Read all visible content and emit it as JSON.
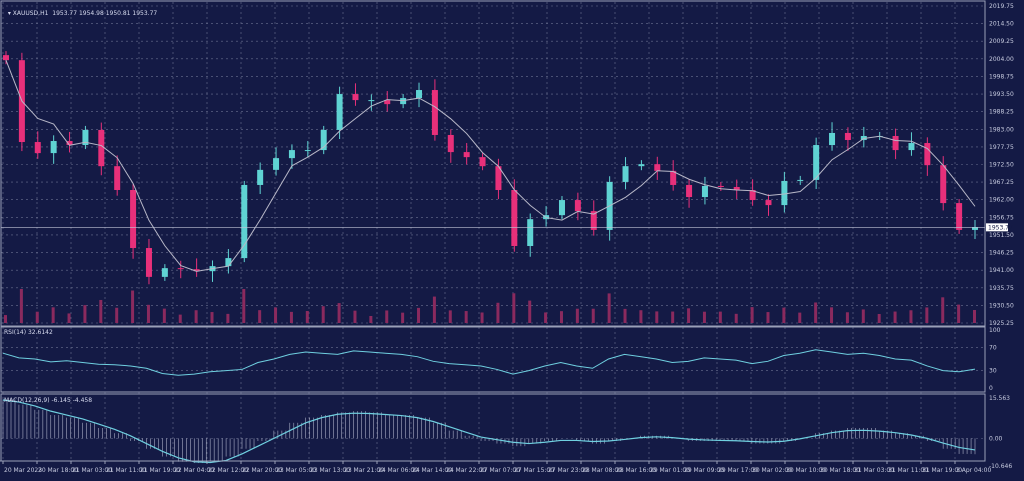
{
  "header": {
    "symbol": "XAUUSD,H1",
    "ohlc": "1953.77 1954.98 1950.81 1953.77"
  },
  "rsi_panel": {
    "label": "RSI(14) 32.6142",
    "levels": [
      "100",
      "70",
      "30",
      "0"
    ]
  },
  "macd_panel": {
    "label": "MACD(12,26,9) -6.145 -4.458",
    "levels": [
      "15.563",
      "0.00",
      "-10.646"
    ]
  },
  "colors": {
    "background": "#141a45",
    "bull": "#5fd3d3",
    "bear": "#e8307a",
    "moving_average": "#b8b8c8",
    "indicator_line": "#6fd0e0",
    "grid": "#6a7090"
  },
  "chart_data": [
    {
      "type": "candlestick",
      "title": "XAUUSD,H1",
      "current_price": "1953.77",
      "ylim": [
        1925.25,
        2019.75
      ],
      "y_ticks": [
        "2019.75",
        "2014.50",
        "2009.25",
        "2004.00",
        "1998.75",
        "1993.50",
        "1988.25",
        "1983.00",
        "1977.75",
        "1972.50",
        "1967.25",
        "1962.00",
        "1956.75",
        "1951.50",
        "1946.25",
        "1941.00",
        "1935.75",
        "1930.50",
        "1925.25"
      ],
      "x_ticks": [
        "20 Mar 2023",
        "20 Mar 18:00",
        "21 Mar 03:00",
        "21 Mar 11:00",
        "21 Mar 19:00",
        "22 Mar 04:00",
        "22 Mar 12:00",
        "22 Mar 20:00",
        "23 Mar 05:00",
        "23 Mar 13:00",
        "23 Mar 21:00",
        "24 Mar 06:00",
        "24 Mar 14:00",
        "24 Mar 22:00",
        "27 Mar 07:00",
        "27 Mar 15:00",
        "27 Mar 23:00",
        "28 Mar 08:00",
        "28 Mar 16:00",
        "29 Mar 01:00",
        "29 Mar 09:00",
        "29 Mar 17:00",
        "30 Mar 02:00",
        "30 Mar 10:00",
        "30 Mar 18:00",
        "31 Mar 03:00",
        "31 Mar 11:00",
        "31 Mar 19:00",
        "3 Apr 04:00"
      ],
      "grid": true,
      "closes_sampled": [
        2003.6,
        1979.2,
        1975.9,
        1979.5,
        1978.3,
        1982.8,
        1972.0,
        1964.9,
        1947.6,
        1939.0,
        1941.6,
        1941.3,
        1940.7,
        1942.2,
        1944.6,
        1966.4,
        1970.9,
        1974.4,
        1976.8,
        1976.8,
        1982.8,
        1993.5,
        1991.7,
        1991.7,
        1990.5,
        1992.3,
        1994.7,
        1981.3,
        1976.2,
        1974.7,
        1972.0,
        1964.9,
        1948.2,
        1956.2,
        1957.4,
        1961.9,
        1958.6,
        1953.0,
        1967.3,
        1972.0,
        1972.6,
        1970.6,
        1966.4,
        1962.8,
        1966.1,
        1965.8,
        1964.9,
        1961.9,
        1960.4,
        1967.6,
        1967.9,
        1978.3,
        1981.9,
        1979.8,
        1981.0,
        1981.0,
        1976.8,
        1978.9,
        1972.3,
        1961.0,
        1953.0,
        1953.77
      ]
    },
    {
      "type": "line",
      "title": "RSI(14) 32.6142",
      "ylim": [
        0,
        100
      ],
      "y_ticks": [
        "100",
        "70",
        "30",
        "0"
      ],
      "values": [
        60,
        52,
        50,
        45,
        47,
        44,
        41,
        40,
        38,
        34,
        25,
        22,
        24,
        28,
        30,
        32,
        44,
        50,
        58,
        62,
        60,
        58,
        64,
        62,
        60,
        58,
        54,
        46,
        42,
        40,
        38,
        32,
        24,
        30,
        38,
        44,
        38,
        34,
        50,
        58,
        54,
        50,
        44,
        46,
        52,
        50,
        48,
        42,
        46,
        56,
        60,
        66,
        62,
        58,
        60,
        56,
        50,
        48,
        38,
        30,
        28,
        32.6
      ]
    },
    {
      "type": "bar+line",
      "title": "MACD(12,26,9) -6.145 -4.458",
      "ylim": [
        -10.646,
        15.563
      ],
      "y_ticks": [
        "15.563",
        "0.00",
        "-10.646"
      ],
      "histogram": [
        15,
        13,
        11,
        9,
        8,
        6,
        4,
        2,
        -1,
        -4,
        -7,
        -9,
        -9.5,
        -9,
        -7,
        -4,
        -1,
        3,
        6,
        8,
        9,
        10,
        10.5,
        10,
        9,
        9,
        8,
        6,
        3,
        1,
        -1,
        -2,
        -3,
        -2,
        -1,
        0,
        -1,
        -2,
        -1,
        0,
        1,
        1,
        0,
        -1,
        -1,
        -1,
        -1,
        -2,
        -2,
        -1,
        0,
        2,
        3,
        4,
        4,
        3,
        2,
        1,
        -1,
        -4,
        -6,
        -6.1
      ],
      "signal": [
        14.8,
        14,
        12.5,
        10.5,
        9,
        7.5,
        5.5,
        3.5,
        1,
        -2,
        -5,
        -7.5,
        -9,
        -9.3,
        -8.5,
        -6,
        -3,
        0,
        3,
        6,
        8,
        9.3,
        9.7,
        9.6,
        9.2,
        8.8,
        8,
        6.5,
        4.5,
        2.5,
        0.5,
        -0.5,
        -1.5,
        -2,
        -1.5,
        -0.8,
        -0.8,
        -1.2,
        -1,
        -0.4,
        0.3,
        0.6,
        0.3,
        -0.3,
        -0.6,
        -0.8,
        -0.9,
        -1.2,
        -1.4,
        -1.1,
        -0.2,
        1,
        2.2,
        3,
        3.1,
        2.8,
        2.2,
        1.3,
        0,
        -1.8,
        -3.5,
        -4.458
      ]
    }
  ]
}
